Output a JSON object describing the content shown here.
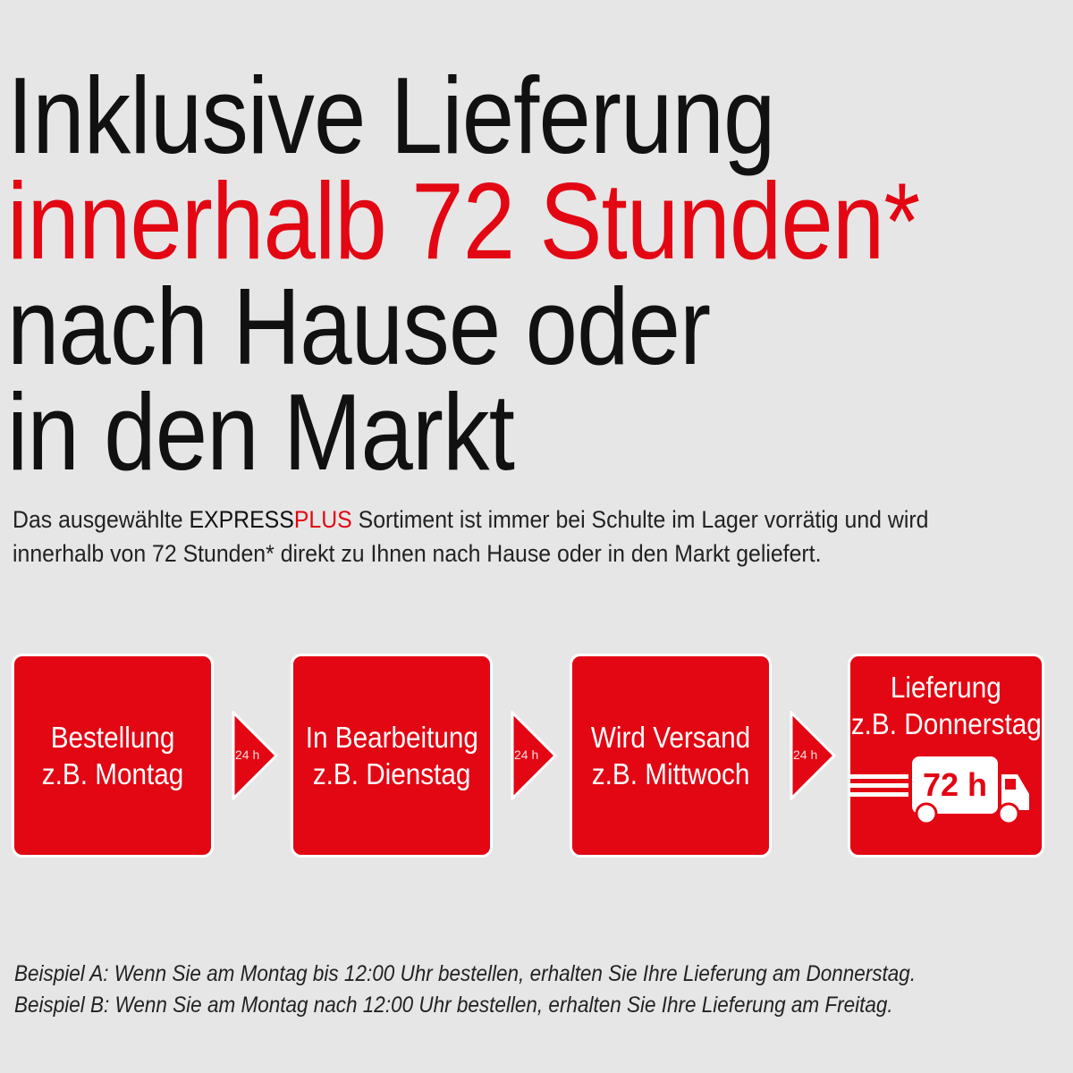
{
  "headline": {
    "line1": "Inklusive Lieferung",
    "line2": "innerhalb 72 Stunden*",
    "line3": "nach Hause oder",
    "line4": "in den Markt"
  },
  "intro": {
    "pre": "Das ausgewählte ",
    "brand_a": "EXPRESS",
    "brand_b": "PLUS",
    "post": " Sortiment ist immer bei Schulte im Lager vorrätig und wird",
    "line2": "innerhalb von 72 Stunden* direkt zu Ihnen nach Hause oder in den Markt geliefert."
  },
  "steps": [
    {
      "title": "Bestellung",
      "day": "z.B. Montag"
    },
    {
      "title": "In Bearbeitung",
      "day": "z.B. Dienstag"
    },
    {
      "title": "Wird Versand",
      "day": "z.B. Mittwoch"
    },
    {
      "title": "Lieferung",
      "day": "z.B. Donnerstag",
      "badge": "72 h"
    }
  ],
  "arrow_label": "24 h",
  "footnotes": [
    "Beispiel A: Wenn Sie am Montag bis 12:00 Uhr bestellen, erhalten Sie Ihre Lieferung am Donnerstag.",
    "Beispiel B: Wenn Sie am Montag nach 12:00 Uhr bestellen, erhalten Sie Ihre Lieferung am Freitag."
  ],
  "colors": {
    "accent": "#e30613",
    "background": "#e6e6e6"
  }
}
